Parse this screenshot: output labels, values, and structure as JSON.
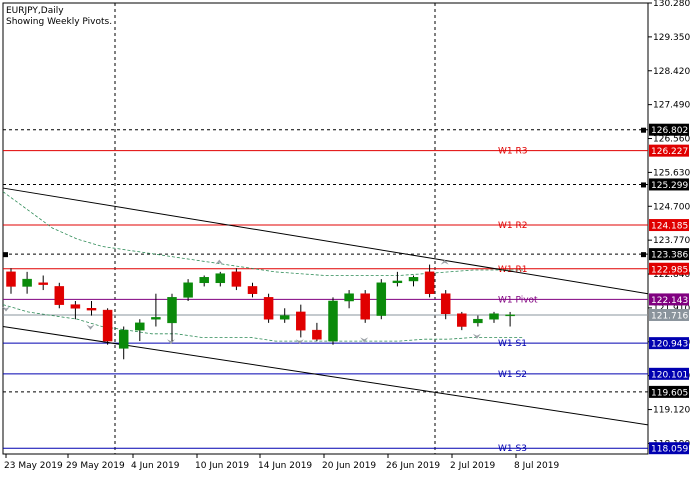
{
  "header": {
    "symbol": "EURJPY,Daily",
    "subtitle": "Showing Weekly Pivots."
  },
  "colors": {
    "background": "#ffffff",
    "bull": "#0a8a0a",
    "bear": "#e00000",
    "pivot": "#800080",
    "resistance": "#e00000",
    "support": "#0000b0",
    "grid": "#000000",
    "current_price": "#8a949c",
    "envelope": "#2e8b57"
  },
  "chart_data": {
    "type": "candlestick",
    "y_range": [
      117.9,
      130.28
    ],
    "y_ticks": [
      "130.280",
      "129.350",
      "128.420",
      "127.490",
      "126.560",
      "125.630",
      "124.700",
      "123.770",
      "122.840",
      "121.910",
      "120.980",
      "120.050",
      "119.120",
      "118.190"
    ],
    "x_labels": [
      "23 May 2019",
      "29 May 2019",
      "4 Jun 2019",
      "10 Jun 2019",
      "14 Jun 2019",
      "20 Jun 2019",
      "26 Jun 2019",
      "2 Jul 2019",
      "8 Jul 2019"
    ],
    "pivot_levels": [
      {
        "label": "W1  R3",
        "value": 126.227,
        "tag": "126.227",
        "kind": "resistance"
      },
      {
        "label": "W1  R2",
        "value": 124.185,
        "tag": "124.185",
        "kind": "resistance"
      },
      {
        "label": "W1  R1",
        "value": 122.985,
        "tag": "122.985",
        "kind": "resistance"
      },
      {
        "label": "W1  Pivot",
        "value": 122.143,
        "tag": "122.143",
        "kind": "pivot"
      },
      {
        "label": "W1  S1",
        "value": 120.943,
        "tag": "120.943",
        "kind": "support"
      },
      {
        "label": "W1  S2",
        "value": 120.101,
        "tag": "120.101",
        "kind": "support"
      },
      {
        "label": "W1  S3",
        "value": 118.059,
        "tag": "118.059",
        "kind": "support"
      }
    ],
    "horizontal_dashed_levels": [
      {
        "value": 126.802,
        "tag": "126.802"
      },
      {
        "value": 125.299,
        "tag": "125.299"
      },
      {
        "value": 123.386,
        "tag": "123.386"
      },
      {
        "value": 119.605,
        "tag": "119.605"
      }
    ],
    "current_price": {
      "value": 121.716,
      "tag": "121.716"
    },
    "candles": [
      {
        "open": 122.9,
        "high": 123.0,
        "low": 122.3,
        "close": 122.5
      },
      {
        "open": 122.5,
        "high": 122.9,
        "low": 122.3,
        "close": 122.7
      },
      {
        "open": 122.6,
        "high": 122.8,
        "low": 122.4,
        "close": 122.55
      },
      {
        "open": 122.5,
        "high": 122.6,
        "low": 121.9,
        "close": 122.0
      },
      {
        "open": 122.0,
        "high": 122.1,
        "low": 121.6,
        "close": 121.9
      },
      {
        "open": 121.9,
        "high": 122.1,
        "low": 121.7,
        "close": 121.85
      },
      {
        "open": 121.85,
        "high": 121.9,
        "low": 120.9,
        "close": 121.0
      },
      {
        "open": 120.8,
        "high": 121.4,
        "low": 120.5,
        "close": 121.3
      },
      {
        "open": 121.3,
        "high": 121.6,
        "low": 121.0,
        "close": 121.5
      },
      {
        "open": 121.6,
        "high": 122.3,
        "low": 121.4,
        "close": 121.65
      },
      {
        "open": 121.5,
        "high": 122.3,
        "low": 121.0,
        "close": 122.2
      },
      {
        "open": 122.2,
        "high": 122.7,
        "low": 122.1,
        "close": 122.6
      },
      {
        "open": 122.6,
        "high": 122.8,
        "low": 122.5,
        "close": 122.75
      },
      {
        "open": 122.6,
        "high": 122.9,
        "low": 122.5,
        "close": 122.85
      },
      {
        "open": 122.9,
        "high": 123.0,
        "low": 122.4,
        "close": 122.5
      },
      {
        "open": 122.5,
        "high": 122.6,
        "low": 122.2,
        "close": 122.3
      },
      {
        "open": 122.2,
        "high": 122.3,
        "low": 121.5,
        "close": 121.6
      },
      {
        "open": 121.6,
        "high": 121.9,
        "low": 121.5,
        "close": 121.7
      },
      {
        "open": 121.8,
        "high": 122.0,
        "low": 121.1,
        "close": 121.3
      },
      {
        "open": 121.3,
        "high": 121.5,
        "low": 121.0,
        "close": 121.05
      },
      {
        "open": 121.0,
        "high": 122.2,
        "low": 120.9,
        "close": 122.1
      },
      {
        "open": 122.1,
        "high": 122.4,
        "low": 121.9,
        "close": 122.3
      },
      {
        "open": 122.3,
        "high": 122.4,
        "low": 121.5,
        "close": 121.6
      },
      {
        "open": 121.7,
        "high": 122.7,
        "low": 121.6,
        "close": 122.6
      },
      {
        "open": 122.6,
        "high": 122.9,
        "low": 122.5,
        "close": 122.65
      },
      {
        "open": 122.65,
        "high": 122.8,
        "low": 122.5,
        "close": 122.75
      },
      {
        "open": 122.9,
        "high": 123.1,
        "low": 122.2,
        "close": 122.3
      },
      {
        "open": 122.3,
        "high": 122.4,
        "low": 121.6,
        "close": 121.75
      },
      {
        "open": 121.75,
        "high": 121.8,
        "low": 121.3,
        "close": 121.4
      },
      {
        "open": 121.5,
        "high": 121.7,
        "low": 121.4,
        "close": 121.6
      },
      {
        "open": 121.6,
        "high": 121.8,
        "low": 121.5,
        "close": 121.75
      },
      {
        "open": 121.7,
        "high": 121.8,
        "low": 121.4,
        "close": 121.72
      }
    ]
  }
}
